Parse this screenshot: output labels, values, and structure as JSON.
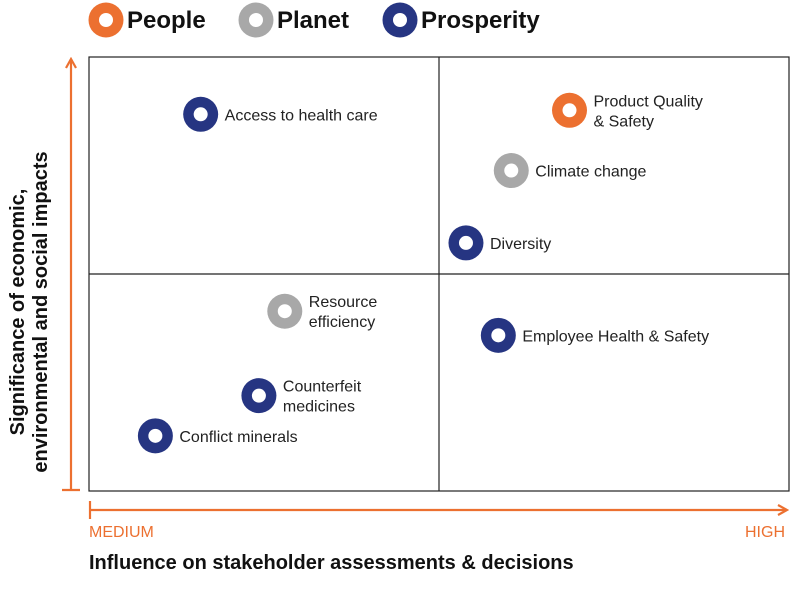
{
  "chart_data": {
    "type": "scatter",
    "title": "",
    "xlabel": "Influence on stakeholder assessments & decisions",
    "ylabel": [
      "Significance of economic,",
      "environmental and social impacts"
    ],
    "x_tick_labels": [
      "MEDIUM",
      "HIGH"
    ],
    "xlim": [
      0,
      100
    ],
    "ylim": [
      0,
      100
    ],
    "legend_position": "top-left",
    "colors": {
      "People": "#ec7030",
      "Planet": "#a8a8a8",
      "Prosperity": "#263582",
      "axis": "#ec7030",
      "grid": "#222222"
    },
    "legend": [
      {
        "name": "People"
      },
      {
        "name": "Planet"
      },
      {
        "name": "Prosperity"
      }
    ],
    "points": [
      {
        "label": [
          "Access to health care"
        ],
        "category": "Prosperity",
        "x": 12,
        "y": 90
      },
      {
        "label": [
          "Product Quality",
          "& Safety"
        ],
        "category": "People",
        "x": 69,
        "y": 91
      },
      {
        "label": [
          "Climate change"
        ],
        "category": "Planet",
        "x": 60,
        "y": 76
      },
      {
        "label": [
          "Diversity"
        ],
        "category": "Prosperity",
        "x": 53,
        "y": 58
      },
      {
        "label": [
          "Resource",
          "efficiency"
        ],
        "category": "Planet",
        "x": 25,
        "y": 41
      },
      {
        "label": [
          "Employee Health & Safety"
        ],
        "category": "Prosperity",
        "x": 58,
        "y": 35
      },
      {
        "label": [
          "Counterfeit",
          "medicines"
        ],
        "category": "Prosperity",
        "x": 21,
        "y": 20
      },
      {
        "label": [
          "Conflict minerals"
        ],
        "category": "Prosperity",
        "x": 5,
        "y": 10
      }
    ]
  }
}
